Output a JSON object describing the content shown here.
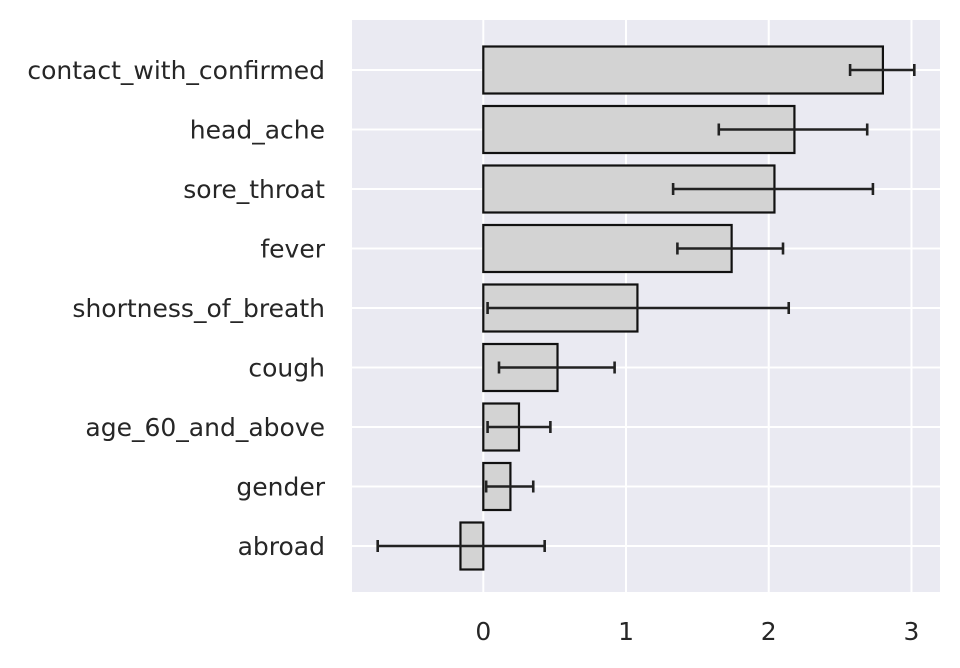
{
  "chart_data": {
    "type": "bar",
    "orientation": "horizontal",
    "title": "",
    "xlabel": "",
    "ylabel": "",
    "xlim": [
      -0.92,
      3.2
    ],
    "xticks": [
      0,
      1,
      2,
      3
    ],
    "grid": true,
    "legend": "none",
    "categories": [
      "contact_with_confirmed",
      "head_ache",
      "sore_throat",
      "fever",
      "shortness_of_breath",
      "cough",
      "age_60_and_above",
      "gender",
      "abroad"
    ],
    "values": [
      2.8,
      2.18,
      2.04,
      1.74,
      1.08,
      0.52,
      0.25,
      0.19,
      -0.16
    ],
    "error_low": [
      2.57,
      1.65,
      1.33,
      1.36,
      0.03,
      0.11,
      0.03,
      0.02,
      -0.74
    ],
    "error_high": [
      3.02,
      2.69,
      2.73,
      2.1,
      2.14,
      0.92,
      0.47,
      0.35,
      0.43
    ],
    "colors": {
      "background": "#eaeaf2",
      "grid": "#ffffff",
      "bar_fill": "#d3d3d3",
      "bar_edge": "#111111",
      "error_bar": "#222222",
      "text": "#262626"
    }
  }
}
